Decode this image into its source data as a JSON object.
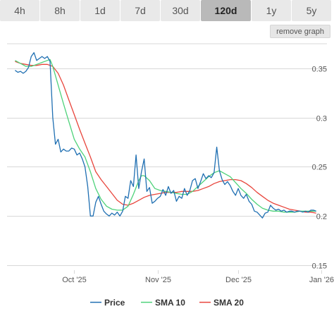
{
  "tabs": [
    {
      "label": "4h",
      "active": false
    },
    {
      "label": "8h",
      "active": false
    },
    {
      "label": "1d",
      "active": false
    },
    {
      "label": "7d",
      "active": false
    },
    {
      "label": "30d",
      "active": false
    },
    {
      "label": "120d",
      "active": true
    },
    {
      "label": "1y",
      "active": false
    },
    {
      "label": "5y",
      "active": false
    }
  ],
  "remove_graph_label": "remove graph",
  "colors": {
    "price": "#1f6fb2",
    "sma10": "#4ed27a",
    "sma20": "#e8453c",
    "grid": "#d8d8d8"
  },
  "chart_data": {
    "type": "line",
    "title": "",
    "xlabel": "",
    "ylabel": "",
    "x_ticks": [
      {
        "label": "Oct '25",
        "day": 22
      },
      {
        "label": "Nov '25",
        "day": 53
      },
      {
        "label": "Dec '25",
        "day": 83
      },
      {
        "label": "Jan '26",
        "day": 114
      }
    ],
    "y_ticks": [
      0.15,
      0.2,
      0.25,
      0.3,
      0.35
    ],
    "xlim": [
      -3,
      116
    ],
    "ylim": [
      0.145,
      0.375
    ],
    "grid": true,
    "legend_position": "bottom",
    "series": [
      {
        "name": "Price",
        "color": "#1f6fb2",
        "points": [
          [
            0,
            0.348
          ],
          [
            1,
            0.346
          ],
          [
            2,
            0.347
          ],
          [
            3,
            0.345
          ],
          [
            4,
            0.347
          ],
          [
            5,
            0.351
          ],
          [
            6,
            0.362
          ],
          [
            7,
            0.366
          ],
          [
            8,
            0.358
          ],
          [
            9,
            0.36
          ],
          [
            10,
            0.362
          ],
          [
            11,
            0.36
          ],
          [
            12,
            0.362
          ],
          [
            13,
            0.357
          ],
          [
            14,
            0.3
          ],
          [
            15,
            0.273
          ],
          [
            16,
            0.278
          ],
          [
            17,
            0.265
          ],
          [
            18,
            0.268
          ],
          [
            19,
            0.266
          ],
          [
            20,
            0.266
          ],
          [
            21,
            0.269
          ],
          [
            22,
            0.268
          ],
          [
            23,
            0.262
          ],
          [
            24,
            0.264
          ],
          [
            25,
            0.258
          ],
          [
            26,
            0.25
          ],
          [
            27,
            0.23
          ],
          [
            28,
            0.2
          ],
          [
            29,
            0.2
          ],
          [
            30,
            0.214
          ],
          [
            31,
            0.22
          ],
          [
            32,
            0.212
          ],
          [
            33,
            0.205
          ],
          [
            34,
            0.202
          ],
          [
            35,
            0.2
          ],
          [
            36,
            0.203
          ],
          [
            37,
            0.201
          ],
          [
            38,
            0.204
          ],
          [
            39,
            0.2
          ],
          [
            40,
            0.205
          ],
          [
            41,
            0.22
          ],
          [
            42,
            0.218
          ],
          [
            43,
            0.236
          ],
          [
            44,
            0.23
          ],
          [
            45,
            0.262
          ],
          [
            46,
            0.228
          ],
          [
            47,
            0.245
          ],
          [
            48,
            0.258
          ],
          [
            49,
            0.225
          ],
          [
            50,
            0.229
          ],
          [
            51,
            0.213
          ],
          [
            52,
            0.215
          ],
          [
            53,
            0.218
          ],
          [
            54,
            0.22
          ],
          [
            55,
            0.227
          ],
          [
            56,
            0.221
          ],
          [
            57,
            0.23
          ],
          [
            58,
            0.223
          ],
          [
            59,
            0.226
          ],
          [
            60,
            0.215
          ],
          [
            61,
            0.22
          ],
          [
            62,
            0.218
          ],
          [
            63,
            0.228
          ],
          [
            64,
            0.221
          ],
          [
            65,
            0.226
          ],
          [
            66,
            0.236
          ],
          [
            67,
            0.238
          ],
          [
            68,
            0.228
          ],
          [
            69,
            0.235
          ],
          [
            70,
            0.243
          ],
          [
            71,
            0.238
          ],
          [
            72,
            0.241
          ],
          [
            73,
            0.239
          ],
          [
            74,
            0.244
          ],
          [
            75,
            0.27
          ],
          [
            76,
            0.246
          ],
          [
            77,
            0.237
          ],
          [
            78,
            0.232
          ],
          [
            79,
            0.235
          ],
          [
            80,
            0.231
          ],
          [
            81,
            0.225
          ],
          [
            82,
            0.221
          ],
          [
            83,
            0.228
          ],
          [
            84,
            0.221
          ],
          [
            85,
            0.218
          ],
          [
            86,
            0.222
          ],
          [
            87,
            0.215
          ],
          [
            88,
            0.212
          ],
          [
            89,
            0.205
          ],
          [
            90,
            0.204
          ],
          [
            91,
            0.201
          ],
          [
            92,
            0.198
          ],
          [
            93,
            0.203
          ],
          [
            94,
            0.204
          ],
          [
            95,
            0.211
          ],
          [
            96,
            0.208
          ],
          [
            97,
            0.206
          ],
          [
            98,
            0.207
          ],
          [
            99,
            0.205
          ],
          [
            100,
            0.206
          ],
          [
            101,
            0.204
          ],
          [
            102,
            0.205
          ],
          [
            103,
            0.205
          ],
          [
            104,
            0.204
          ],
          [
            105,
            0.205
          ],
          [
            106,
            0.205
          ],
          [
            107,
            0.204
          ],
          [
            108,
            0.205
          ],
          [
            109,
            0.204
          ],
          [
            110,
            0.206
          ],
          [
            111,
            0.206
          ],
          [
            112,
            0.205
          ]
        ]
      },
      {
        "name": "SMA 10",
        "color": "#4ed27a",
        "points": [
          [
            0,
            0.358
          ],
          [
            2,
            0.355
          ],
          [
            4,
            0.352
          ],
          [
            6,
            0.352
          ],
          [
            8,
            0.354
          ],
          [
            10,
            0.356
          ],
          [
            12,
            0.358
          ],
          [
            13,
            0.359
          ],
          [
            14,
            0.352
          ],
          [
            16,
            0.333
          ],
          [
            18,
            0.314
          ],
          [
            20,
            0.296
          ],
          [
            22,
            0.278
          ],
          [
            24,
            0.268
          ],
          [
            26,
            0.26
          ],
          [
            28,
            0.245
          ],
          [
            30,
            0.228
          ],
          [
            32,
            0.217
          ],
          [
            34,
            0.21
          ],
          [
            36,
            0.207
          ],
          [
            38,
            0.206
          ],
          [
            40,
            0.206
          ],
          [
            42,
            0.21
          ],
          [
            44,
            0.222
          ],
          [
            46,
            0.236
          ],
          [
            47,
            0.241
          ],
          [
            48,
            0.241
          ],
          [
            50,
            0.236
          ],
          [
            52,
            0.228
          ],
          [
            54,
            0.226
          ],
          [
            56,
            0.225
          ],
          [
            58,
            0.224
          ],
          [
            60,
            0.223
          ],
          [
            62,
            0.222
          ],
          [
            64,
            0.222
          ],
          [
            66,
            0.225
          ],
          [
            68,
            0.23
          ],
          [
            70,
            0.235
          ],
          [
            72,
            0.24
          ],
          [
            74,
            0.244
          ],
          [
            75,
            0.245
          ],
          [
            76,
            0.246
          ],
          [
            78,
            0.243
          ],
          [
            80,
            0.24
          ],
          [
            82,
            0.234
          ],
          [
            84,
            0.228
          ],
          [
            86,
            0.223
          ],
          [
            88,
            0.217
          ],
          [
            90,
            0.212
          ],
          [
            92,
            0.208
          ],
          [
            94,
            0.206
          ],
          [
            96,
            0.205
          ],
          [
            98,
            0.205
          ],
          [
            100,
            0.204
          ],
          [
            102,
            0.204
          ],
          [
            104,
            0.204
          ],
          [
            106,
            0.205
          ],
          [
            108,
            0.205
          ],
          [
            110,
            0.205
          ],
          [
            112,
            0.205
          ]
        ]
      },
      {
        "name": "SMA 20",
        "color": "#e8453c",
        "points": [
          [
            0,
            0.357
          ],
          [
            2,
            0.355
          ],
          [
            4,
            0.354
          ],
          [
            6,
            0.353
          ],
          [
            8,
            0.353
          ],
          [
            10,
            0.354
          ],
          [
            12,
            0.354
          ],
          [
            14,
            0.352
          ],
          [
            16,
            0.345
          ],
          [
            18,
            0.333
          ],
          [
            20,
            0.318
          ],
          [
            22,
            0.303
          ],
          [
            24,
            0.288
          ],
          [
            26,
            0.274
          ],
          [
            28,
            0.26
          ],
          [
            30,
            0.245
          ],
          [
            32,
            0.237
          ],
          [
            34,
            0.23
          ],
          [
            36,
            0.223
          ],
          [
            38,
            0.216
          ],
          [
            40,
            0.212
          ],
          [
            42,
            0.211
          ],
          [
            44,
            0.213
          ],
          [
            46,
            0.216
          ],
          [
            48,
            0.219
          ],
          [
            50,
            0.221
          ],
          [
            52,
            0.222
          ],
          [
            54,
            0.223
          ],
          [
            56,
            0.224
          ],
          [
            58,
            0.224
          ],
          [
            60,
            0.224
          ],
          [
            62,
            0.225
          ],
          [
            64,
            0.225
          ],
          [
            66,
            0.225
          ],
          [
            68,
            0.226
          ],
          [
            70,
            0.228
          ],
          [
            72,
            0.23
          ],
          [
            74,
            0.233
          ],
          [
            76,
            0.235
          ],
          [
            78,
            0.236
          ],
          [
            80,
            0.237
          ],
          [
            82,
            0.237
          ],
          [
            84,
            0.236
          ],
          [
            86,
            0.233
          ],
          [
            88,
            0.229
          ],
          [
            90,
            0.224
          ],
          [
            92,
            0.22
          ],
          [
            94,
            0.216
          ],
          [
            96,
            0.213
          ],
          [
            98,
            0.211
          ],
          [
            100,
            0.209
          ],
          [
            102,
            0.207
          ],
          [
            104,
            0.206
          ],
          [
            106,
            0.205
          ],
          [
            108,
            0.204
          ],
          [
            110,
            0.204
          ],
          [
            112,
            0.203
          ]
        ]
      }
    ]
  }
}
